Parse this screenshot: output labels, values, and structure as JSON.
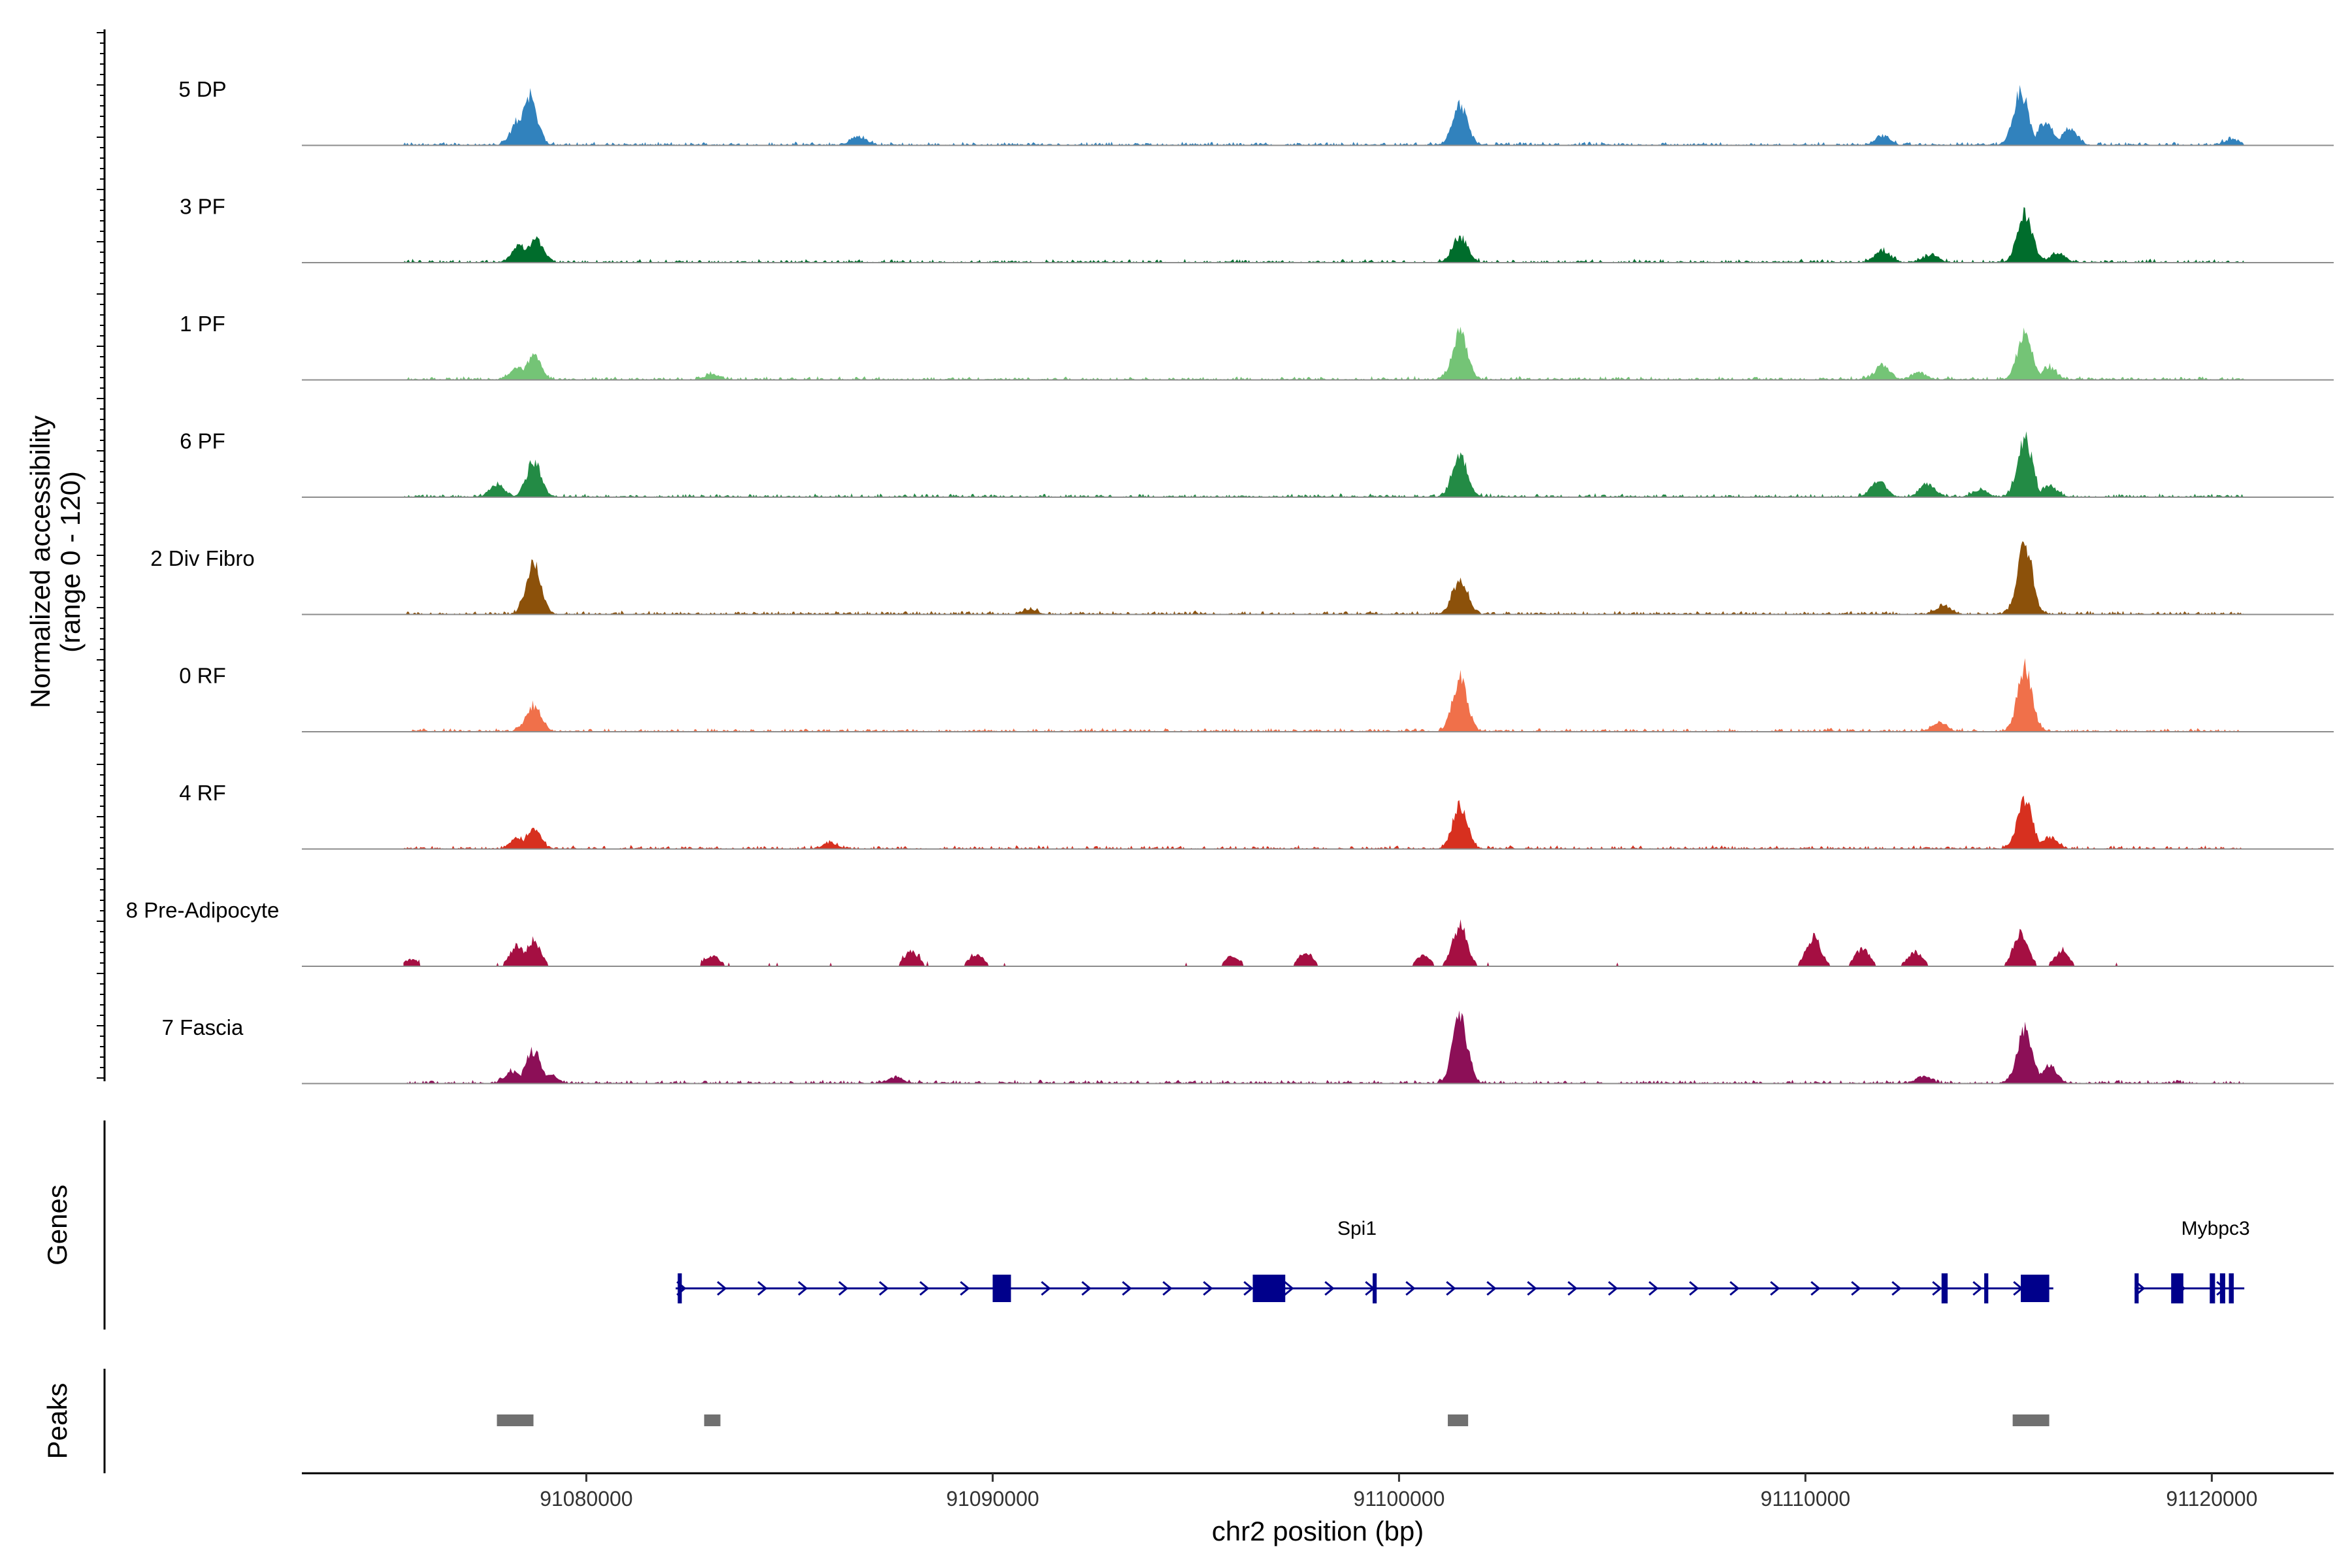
{
  "chart_data": {
    "type": "area",
    "chromosome": "chr2",
    "xlabel": "chr2 position (bp)",
    "ylabel": "Normalized accessibility",
    "ylabel_range": "(range 0 - 120)",
    "ylim": [
      0,
      120
    ],
    "xlim": [
      91073000,
      91123000
    ],
    "x_ticks": [
      91080000,
      91090000,
      91100000,
      91110000,
      91120000
    ],
    "x_tick_labels": [
      "91080000",
      "91090000",
      "91100000",
      "91110000",
      "91120000"
    ],
    "signal_extent": [
      91075500,
      91120800
    ],
    "tracks": [
      {
        "name": "5 DP",
        "color": "#3182bd",
        "peaks": [
          [
            91078600,
            85
          ],
          [
            91078350,
            45
          ],
          [
            91086700,
            15
          ],
          [
            91101500,
            65
          ],
          [
            91111900,
            15
          ],
          [
            91115300,
            90
          ],
          [
            91115900,
            40
          ],
          [
            91116500,
            30
          ],
          [
            91120500,
            10
          ]
        ]
      },
      {
        "name": "3 PF",
        "color": "#006d2c",
        "peaks": [
          [
            91078750,
            40
          ],
          [
            91078350,
            28
          ],
          [
            91101500,
            45
          ],
          [
            91111900,
            20
          ],
          [
            91113100,
            12
          ],
          [
            91115400,
            85
          ],
          [
            91116200,
            15
          ]
        ]
      },
      {
        "name": "1 PF",
        "color": "#74c476",
        "peaks": [
          [
            91078700,
            40
          ],
          [
            91078300,
            20
          ],
          [
            91083100,
            10
          ],
          [
            91101500,
            80
          ],
          [
            91111900,
            25
          ],
          [
            91112800,
            12
          ],
          [
            91115400,
            80
          ],
          [
            91116000,
            20
          ]
        ]
      },
      {
        "name": "6 PF",
        "color": "#238b45",
        "peaks": [
          [
            91078700,
            58
          ],
          [
            91077800,
            20
          ],
          [
            91101500,
            75
          ],
          [
            91111800,
            28
          ],
          [
            91113000,
            22
          ],
          [
            91115400,
            100
          ],
          [
            91116000,
            20
          ],
          [
            91114300,
            12
          ]
        ]
      },
      {
        "name": "2 Div Fibro",
        "color": "#8c510a",
        "peaks": [
          [
            91078700,
            90
          ],
          [
            91101500,
            60
          ],
          [
            91115400,
            125
          ],
          [
            91113400,
            15
          ],
          [
            91090900,
            8
          ]
        ]
      },
      {
        "name": "0 RF",
        "color": "#f0704a",
        "peaks": [
          [
            91078700,
            45
          ],
          [
            91101500,
            90
          ],
          [
            91113300,
            15
          ],
          [
            91115400,
            105
          ]
        ]
      },
      {
        "name": "4 RF",
        "color": "#d7301f",
        "peaks": [
          [
            91078700,
            32
          ],
          [
            91078300,
            18
          ],
          [
            91101500,
            75
          ],
          [
            91115400,
            85
          ],
          [
            91116000,
            20
          ],
          [
            91086000,
            10
          ]
        ]
      },
      {
        "name": "8 Pre-Adipocyte",
        "color": "#a50f42",
        "peaks": [
          [
            91078700,
            45
          ],
          [
            91078300,
            35
          ],
          [
            91101500,
            70
          ],
          [
            91110200,
            50
          ],
          [
            91111400,
            30
          ],
          [
            91112700,
            25
          ],
          [
            91115300,
            60
          ],
          [
            91116300,
            25
          ],
          [
            91088000,
            25
          ],
          [
            91089600,
            20
          ],
          [
            91083100,
            18
          ],
          [
            91097700,
            25
          ],
          [
            91095900,
            18
          ],
          [
            91100600,
            18
          ],
          [
            91075700,
            12
          ]
        ]
      },
      {
        "name": "7 Fascia",
        "color": "#8c0f57",
        "peaks": [
          [
            91078700,
            55
          ],
          [
            91078200,
            20
          ],
          [
            91079100,
            15
          ],
          [
            91101500,
            110
          ],
          [
            91115400,
            95
          ],
          [
            91116000,
            30
          ],
          [
            91087600,
            10
          ],
          [
            91112900,
            12
          ]
        ]
      }
    ],
    "genes_panel_title": "Genes",
    "genes": [
      {
        "name": "Spi1",
        "start": 91082200,
        "end": 91116100,
        "color": "#00008b",
        "exons": [
          [
            91082250,
            91082350
          ],
          [
            91090000,
            91090450
          ],
          [
            91096400,
            91097200
          ],
          [
            91099350,
            91099450
          ],
          [
            91113350,
            91113500
          ],
          [
            91114400,
            91114500
          ],
          [
            91115300,
            91116000
          ]
        ]
      },
      {
        "name": "Mybpc3",
        "start": 91118100,
        "end": 91120800,
        "color": "#00008b",
        "exons": [
          [
            91118100,
            91118200
          ],
          [
            91119000,
            91119300
          ],
          [
            91119950,
            91120080
          ],
          [
            91120200,
            91120330
          ],
          [
            91120420,
            91120540
          ]
        ]
      }
    ],
    "peaks_panel_title": "Peaks",
    "peak_regions": [
      [
        91077800,
        91078700
      ],
      [
        91082900,
        91083300
      ],
      [
        91101200,
        91101700
      ],
      [
        91115100,
        91116000
      ]
    ],
    "peak_region_color": "#707070"
  }
}
